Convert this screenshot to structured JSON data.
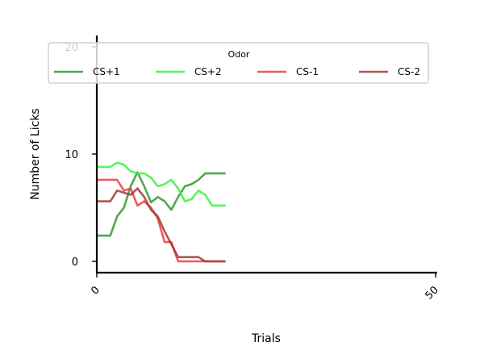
{
  "chart_data": {
    "type": "line",
    "title": "",
    "xlabel": "Trials",
    "ylabel": "Number of Licks",
    "xlim": [
      0,
      50
    ],
    "ylim": [
      -1,
      21
    ],
    "xticks": [
      0,
      50
    ],
    "xtick_labels": [
      "0",
      "50"
    ],
    "yticks": [
      0,
      10,
      20
    ],
    "ytick_labels": [
      "0",
      "10",
      "20"
    ],
    "grid": false,
    "legend": {
      "title": "Odor",
      "placement": "top",
      "columns": 4
    },
    "x": [
      0,
      1,
      2,
      3,
      4,
      5,
      6,
      7,
      8,
      9,
      10,
      11,
      12,
      13,
      14,
      15,
      16,
      17,
      18,
      19
    ],
    "series": [
      {
        "name": "CS+1",
        "color": "#2f9a2f",
        "values": [
          2.4,
          2.4,
          2.4,
          4.2,
          5.0,
          7.0,
          8.3,
          7.0,
          5.5,
          6.0,
          5.6,
          4.8,
          6.0,
          7.0,
          7.2,
          7.6,
          8.2,
          8.2,
          8.2,
          8.2
        ]
      },
      {
        "name": "CS+2",
        "color": "#3af53a",
        "values": [
          8.8,
          8.8,
          8.8,
          9.2,
          9.0,
          8.4,
          8.2,
          8.2,
          7.8,
          7.0,
          7.2,
          7.6,
          6.8,
          5.6,
          5.8,
          6.6,
          6.2,
          5.2,
          5.2,
          5.2
        ]
      },
      {
        "name": "CS-1",
        "color": "#f03c3c",
        "values": [
          7.6,
          7.6,
          7.6,
          7.6,
          6.6,
          6.8,
          5.2,
          5.6,
          5.0,
          4.0,
          1.8,
          1.8,
          0.0,
          0.0,
          0.0,
          0.0,
          0.0,
          0.0,
          0.0,
          0.0
        ]
      },
      {
        "name": "CS-2",
        "color": "#a33a3a",
        "values": [
          5.6,
          5.6,
          5.6,
          6.6,
          6.4,
          6.2,
          6.8,
          6.0,
          4.8,
          4.2,
          2.8,
          1.6,
          0.4,
          0.4,
          0.4,
          0.4,
          0.0,
          0.0,
          0.0,
          0.0
        ]
      }
    ]
  }
}
